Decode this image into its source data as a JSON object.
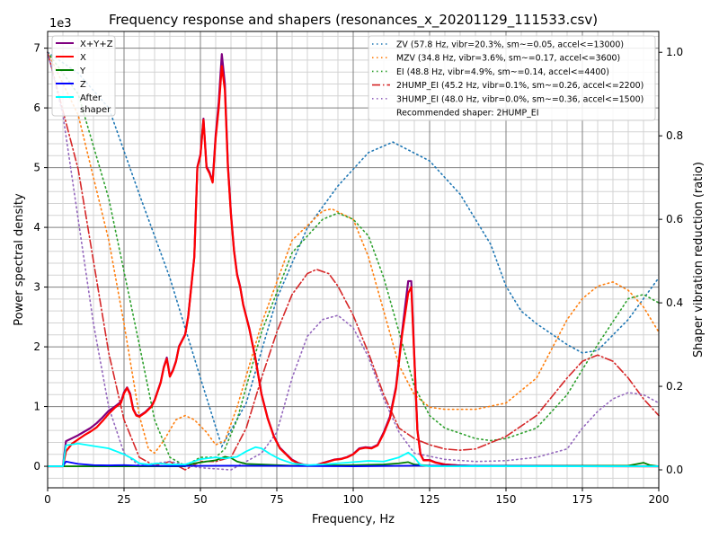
{
  "chart_data": {
    "type": "line",
    "title": "Frequency response and shapers (resonances_x_20201129_111533.csv)",
    "xlabel": "Frequency, Hz",
    "ylabel": "Power spectral density",
    "ylabel_right": "Shaper vibration reduction (ratio)",
    "y_offset_label": "1e3",
    "xlim": [
      0,
      200
    ],
    "ylim": [
      -360,
      7280
    ],
    "ylim_right": [
      -0.043,
      1.05
    ],
    "grid": "major and minor",
    "x_ticks": [
      "0",
      "25",
      "50",
      "75",
      "100",
      "125",
      "150",
      "175",
      "200"
    ],
    "y_ticks": [
      "0",
      "1",
      "2",
      "3",
      "4",
      "5",
      "6",
      "7"
    ],
    "y_right_ticks": [
      "0.0",
      "0.2",
      "0.4",
      "0.6",
      "0.8",
      "1.0"
    ],
    "psd_legend_position": "top-left",
    "shaper_legend_position": "top-right",
    "recommended": "Recommended shaper: 2HUMP_EI",
    "psd_series": [
      {
        "name": "X+Y+Z",
        "color": "#800080",
        "x": [
          0,
          5,
          6,
          8,
          10,
          12,
          14,
          16,
          18,
          20,
          22,
          24,
          25,
          26,
          27,
          28,
          29,
          30,
          32,
          34,
          35,
          37,
          38,
          39,
          40,
          41,
          42,
          43,
          44,
          45,
          46,
          47,
          48,
          49,
          50,
          51,
          52,
          53,
          54,
          55,
          56,
          57,
          58,
          59,
          60,
          61,
          62,
          63,
          64,
          66,
          68,
          70,
          72,
          74,
          76,
          78,
          80,
          82,
          84,
          86,
          88,
          90,
          92,
          94,
          96,
          98,
          100,
          102,
          104,
          106,
          108,
          110,
          112,
          114,
          116,
          118,
          119,
          120,
          121,
          122,
          123,
          125,
          127,
          130,
          135,
          140,
          200
        ],
        "y": [
          0,
          0,
          420,
          470,
          520,
          580,
          640,
          720,
          820,
          930,
          1000,
          1080,
          1240,
          1320,
          1220,
          960,
          860,
          840,
          910,
          1010,
          1110,
          1410,
          1660,
          1820,
          1510,
          1610,
          1760,
          2010,
          2110,
          2210,
          2510,
          3010,
          3510,
          5010,
          5220,
          5820,
          5020,
          4920,
          4770,
          5550,
          6100,
          6900,
          6400,
          5050,
          4230,
          3620,
          3220,
          3010,
          2710,
          2310,
          1810,
          1210,
          810,
          510,
          310,
          210,
          110,
          55,
          25,
          12,
          22,
          55,
          85,
          115,
          125,
          155,
          205,
          300,
          320,
          310,
          360,
          570,
          830,
          1330,
          2250,
          3100,
          3100,
          1850,
          620,
          210,
          105,
          105,
          65,
          32,
          12,
          6,
          0
        ]
      },
      {
        "name": "X",
        "color": "#ff0000",
        "x": [
          0,
          5,
          6,
          8,
          10,
          12,
          14,
          16,
          18,
          20,
          22,
          24,
          25,
          26,
          27,
          28,
          29,
          30,
          32,
          34,
          35,
          37,
          38,
          39,
          40,
          41,
          42,
          43,
          44,
          45,
          46,
          47,
          48,
          49,
          50,
          51,
          52,
          53,
          54,
          55,
          56,
          57,
          58,
          59,
          60,
          61,
          62,
          63,
          64,
          66,
          68,
          70,
          72,
          74,
          76,
          78,
          80,
          82,
          84,
          86,
          88,
          90,
          92,
          94,
          96,
          98,
          100,
          102,
          104,
          106,
          108,
          110,
          112,
          114,
          116,
          118,
          119,
          120,
          121,
          122,
          123,
          125,
          127,
          130,
          135,
          140,
          200
        ],
        "y": [
          0,
          0,
          250,
          380,
          450,
          520,
          580,
          650,
          760,
          880,
          980,
          1060,
          1220,
          1310,
          1200,
          950,
          850,
          830,
          900,
          1000,
          1100,
          1400,
          1650,
          1800,
          1500,
          1600,
          1750,
          2000,
          2100,
          2200,
          2500,
          3000,
          3500,
          5000,
          5200,
          5800,
          5000,
          4900,
          4750,
          5500,
          6000,
          6700,
          6300,
          5000,
          4200,
          3600,
          3200,
          3000,
          2700,
          2300,
          1800,
          1200,
          800,
          500,
          300,
          200,
          100,
          50,
          20,
          10,
          20,
          50,
          80,
          110,
          120,
          150,
          200,
          290,
          310,
          300,
          350,
          550,
          800,
          1300,
          2200,
          2900,
          3000,
          1800,
          600,
          200,
          100,
          100,
          60,
          30,
          10,
          5,
          0
        ]
      },
      {
        "name": "Y",
        "color": "#008000",
        "x": [
          0,
          45,
          48,
          52,
          55,
          58,
          60,
          62,
          65,
          70,
          80,
          100,
          110,
          115,
          118,
          120,
          125,
          190,
          195,
          197,
          200
        ],
        "y": [
          0,
          0,
          50,
          80,
          100,
          160,
          140,
          80,
          40,
          30,
          10,
          20,
          30,
          50,
          70,
          30,
          10,
          10,
          60,
          20,
          0
        ]
      },
      {
        "name": "Z",
        "color": "#0000ff",
        "x": [
          0,
          5,
          6,
          8,
          10,
          15,
          20,
          25,
          30,
          40,
          60,
          100,
          120,
          200
        ],
        "y": [
          0,
          0,
          80,
          60,
          40,
          20,
          15,
          20,
          10,
          5,
          10,
          0,
          10,
          0
        ]
      },
      {
        "name": "After\nshaper",
        "color": "#00ffff",
        "x": [
          0,
          5,
          6,
          10,
          15,
          20,
          25,
          28,
          30,
          33,
          36,
          40,
          45,
          50,
          55,
          58,
          62,
          65,
          68,
          70,
          73,
          76,
          80,
          85,
          90,
          95,
          100,
          105,
          110,
          115,
          118,
          120,
          122,
          125,
          200
        ],
        "y": [
          0,
          0,
          350,
          380,
          340,
          300,
          200,
          120,
          50,
          30,
          50,
          30,
          30,
          120,
          150,
          130,
          160,
          250,
          320,
          300,
          200,
          120,
          50,
          20,
          30,
          50,
          70,
          90,
          80,
          150,
          230,
          150,
          20,
          0,
          0
        ]
      }
    ],
    "shapers": [
      {
        "name": "ZV (57.8 Hz, vibr=20.3%, sm~=0.05, accel<=13000)",
        "color": "#1f77b4",
        "dash": "dotted",
        "x": [
          0,
          10,
          20,
          30,
          40,
          50,
          57,
          65,
          75,
          85,
          95,
          105,
          113,
          125,
          135,
          145,
          150,
          155,
          160,
          170,
          175,
          180,
          190,
          200
        ],
        "y": [
          1.0,
          0.95,
          0.867,
          0.66,
          0.46,
          0.22,
          0.056,
          0.16,
          0.41,
          0.58,
          0.68,
          0.76,
          0.785,
          0.74,
          0.66,
          0.54,
          0.44,
          0.38,
          0.35,
          0.3,
          0.28,
          0.286,
          0.36,
          0.46
        ]
      },
      {
        "name": "MZV (34.8 Hz, vibr=3.6%, sm~=0.17, accel<=3600)",
        "color": "#ff7f0e",
        "dash": "dotted",
        "x": [
          0,
          10,
          20,
          25,
          30,
          33,
          35,
          38,
          42,
          45,
          48,
          52,
          55,
          58,
          62,
          70,
          80,
          90,
          93,
          100,
          105,
          110,
          115,
          120,
          125,
          130,
          140,
          150,
          160,
          170,
          175,
          180,
          185,
          190,
          195,
          200
        ],
        "y": [
          1.0,
          0.85,
          0.55,
          0.35,
          0.13,
          0.05,
          0.04,
          0.07,
          0.12,
          0.13,
          0.12,
          0.09,
          0.06,
          0.07,
          0.15,
          0.35,
          0.55,
          0.62,
          0.625,
          0.6,
          0.51,
          0.38,
          0.25,
          0.18,
          0.15,
          0.145,
          0.145,
          0.16,
          0.22,
          0.36,
          0.41,
          0.44,
          0.45,
          0.43,
          0.39,
          0.33
        ]
      },
      {
        "name": "EI (48.8 Hz, vibr=4.9%, sm~=0.14, accel<=4400)",
        "color": "#2ca02c",
        "dash": "dotted",
        "x": [
          0,
          10,
          20,
          30,
          35,
          40,
          45,
          50,
          55,
          58,
          62,
          70,
          80,
          90,
          95,
          100,
          105,
          110,
          115,
          120,
          125,
          130,
          140,
          145,
          150,
          160,
          170,
          180,
          190,
          195,
          200
        ],
        "y": [
          1.0,
          0.9,
          0.65,
          0.3,
          0.12,
          0.03,
          0.01,
          0.03,
          0.03,
          0.05,
          0.12,
          0.33,
          0.52,
          0.6,
          0.615,
          0.6,
          0.56,
          0.46,
          0.33,
          0.2,
          0.13,
          0.1,
          0.075,
          0.07,
          0.075,
          0.1,
          0.18,
          0.3,
          0.41,
          0.42,
          0.4
        ]
      },
      {
        "name": "2HUMP_EI (45.2 Hz, vibr=0.1%, sm~=0.26, accel<=2200)",
        "color": "#d62728",
        "dash": "dashdot",
        "x": [
          0,
          10,
          15,
          20,
          25,
          30,
          35,
          40,
          45,
          50,
          55,
          60,
          65,
          70,
          75,
          80,
          85,
          88,
          92,
          95,
          100,
          105,
          110,
          115,
          120,
          125,
          130,
          135,
          140,
          150,
          160,
          170,
          175,
          180,
          185,
          190,
          195,
          200
        ],
        "y": [
          1.0,
          0.72,
          0.5,
          0.28,
          0.12,
          0.03,
          0.01,
          0.02,
          0.0,
          0.02,
          0.02,
          0.03,
          0.1,
          0.22,
          0.33,
          0.42,
          0.47,
          0.48,
          0.47,
          0.44,
          0.37,
          0.28,
          0.18,
          0.1,
          0.075,
          0.06,
          0.05,
          0.047,
          0.05,
          0.08,
          0.13,
          0.22,
          0.26,
          0.275,
          0.26,
          0.22,
          0.17,
          0.13
        ]
      },
      {
        "name": "3HUMP_EI (48.0 Hz, vibr=0.0%, sm~=0.36, accel<=1500)",
        "color": "#9467bd",
        "dash": "dotted",
        "x": [
          0,
          5,
          10,
          15,
          20,
          25,
          30,
          40,
          50,
          60,
          65,
          70,
          75,
          80,
          85,
          90,
          95,
          100,
          105,
          110,
          115,
          120,
          130,
          140,
          150,
          160,
          165,
          170,
          175,
          180,
          185,
          190,
          195,
          200
        ],
        "y": [
          1.0,
          0.85,
          0.6,
          0.35,
          0.15,
          0.04,
          0.01,
          0.02,
          0.005,
          0.0,
          0.02,
          0.04,
          0.09,
          0.22,
          0.32,
          0.36,
          0.37,
          0.34,
          0.27,
          0.17,
          0.09,
          0.04,
          0.025,
          0.02,
          0.022,
          0.03,
          0.04,
          0.05,
          0.1,
          0.14,
          0.17,
          0.185,
          0.18,
          0.16
        ]
      }
    ]
  }
}
